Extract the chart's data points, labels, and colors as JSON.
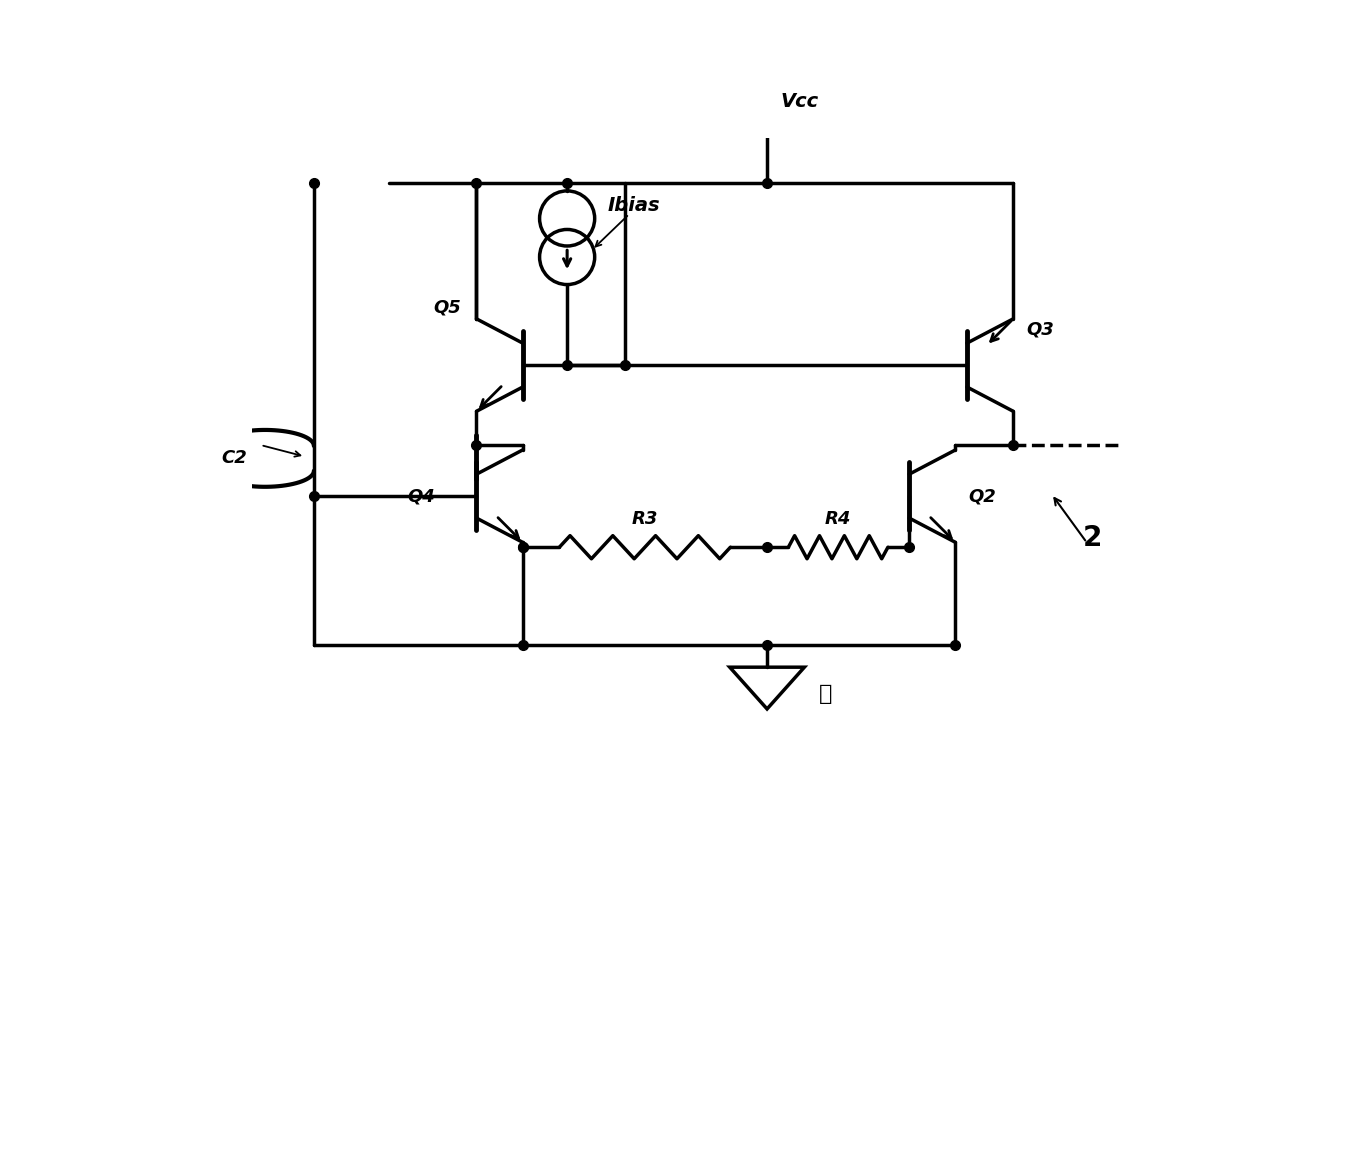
{
  "bg_color": "#ffffff",
  "line_color": "#000000",
  "lw": 2.5,
  "dot_size": 7,
  "figsize": [
    13.58,
    11.54
  ],
  "dpi": 100,
  "xlim": [
    0,
    10
  ],
  "ylim": [
    0,
    10
  ]
}
